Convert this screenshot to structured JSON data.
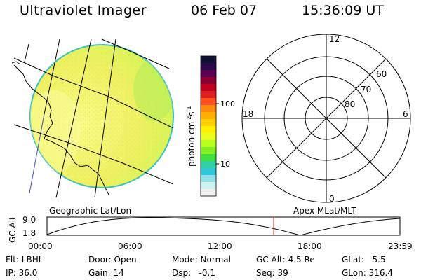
{
  "header": {
    "title": "Ultraviolet Imager",
    "date": "06 Feb 07",
    "time": "15:36:09 UT"
  },
  "colorbar": {
    "unit_base": "photon cm",
    "unit_exp1": "-2",
    "unit_mid": "s",
    "unit_exp2": "-1",
    "ticks": [
      "100",
      "10"
    ],
    "colors": [
      "#111133",
      "#2a0a4a",
      "#5a0050",
      "#8a0030",
      "#c00020",
      "#e02020",
      "#ff5020",
      "#ff8a10",
      "#ffb000",
      "#ffd000",
      "#fff000",
      "#e8ff20",
      "#b8ff20",
      "#80f020",
      "#40e040",
      "#30d0a0",
      "#30c8d8",
      "#90e0e8",
      "#d0f0f0",
      "#f0f0f0"
    ]
  },
  "left_panel": {
    "caption": "Geographic Lat/Lon",
    "disk_colors": {
      "outline": "#40c0c0",
      "fill_main": "#f0f060",
      "fill_right": "#c8f050",
      "fill_left": "#fafa80"
    }
  },
  "right_panel": {
    "caption": "Apex MLat/MLT",
    "mlt_labels": {
      "top": "12",
      "right": "6",
      "bottom": "0",
      "left": "18"
    },
    "mlat_labels": [
      "60",
      "70",
      "80"
    ]
  },
  "altitude_plot": {
    "ylabel": "GC Alt",
    "yticks": [
      "9.0",
      "1.8"
    ],
    "xticks": [
      "00:00",
      "06:00",
      "12:00",
      "18:00",
      "23:59"
    ],
    "current_time_marker_color": "#cc3333"
  },
  "info": {
    "flt": "Flt: LBHL",
    "ip": "IP: 36.0",
    "door": "Door: Open",
    "gain": "Gain: 14",
    "mode": "Mode: Normal",
    "dsp": "Dsp:   -0.1",
    "gcalt": "GC Alt: 4.5 Re",
    "seq": "Seq: 39",
    "glat": "GLat:   5.5",
    "glon": "GLon: 316.4"
  }
}
